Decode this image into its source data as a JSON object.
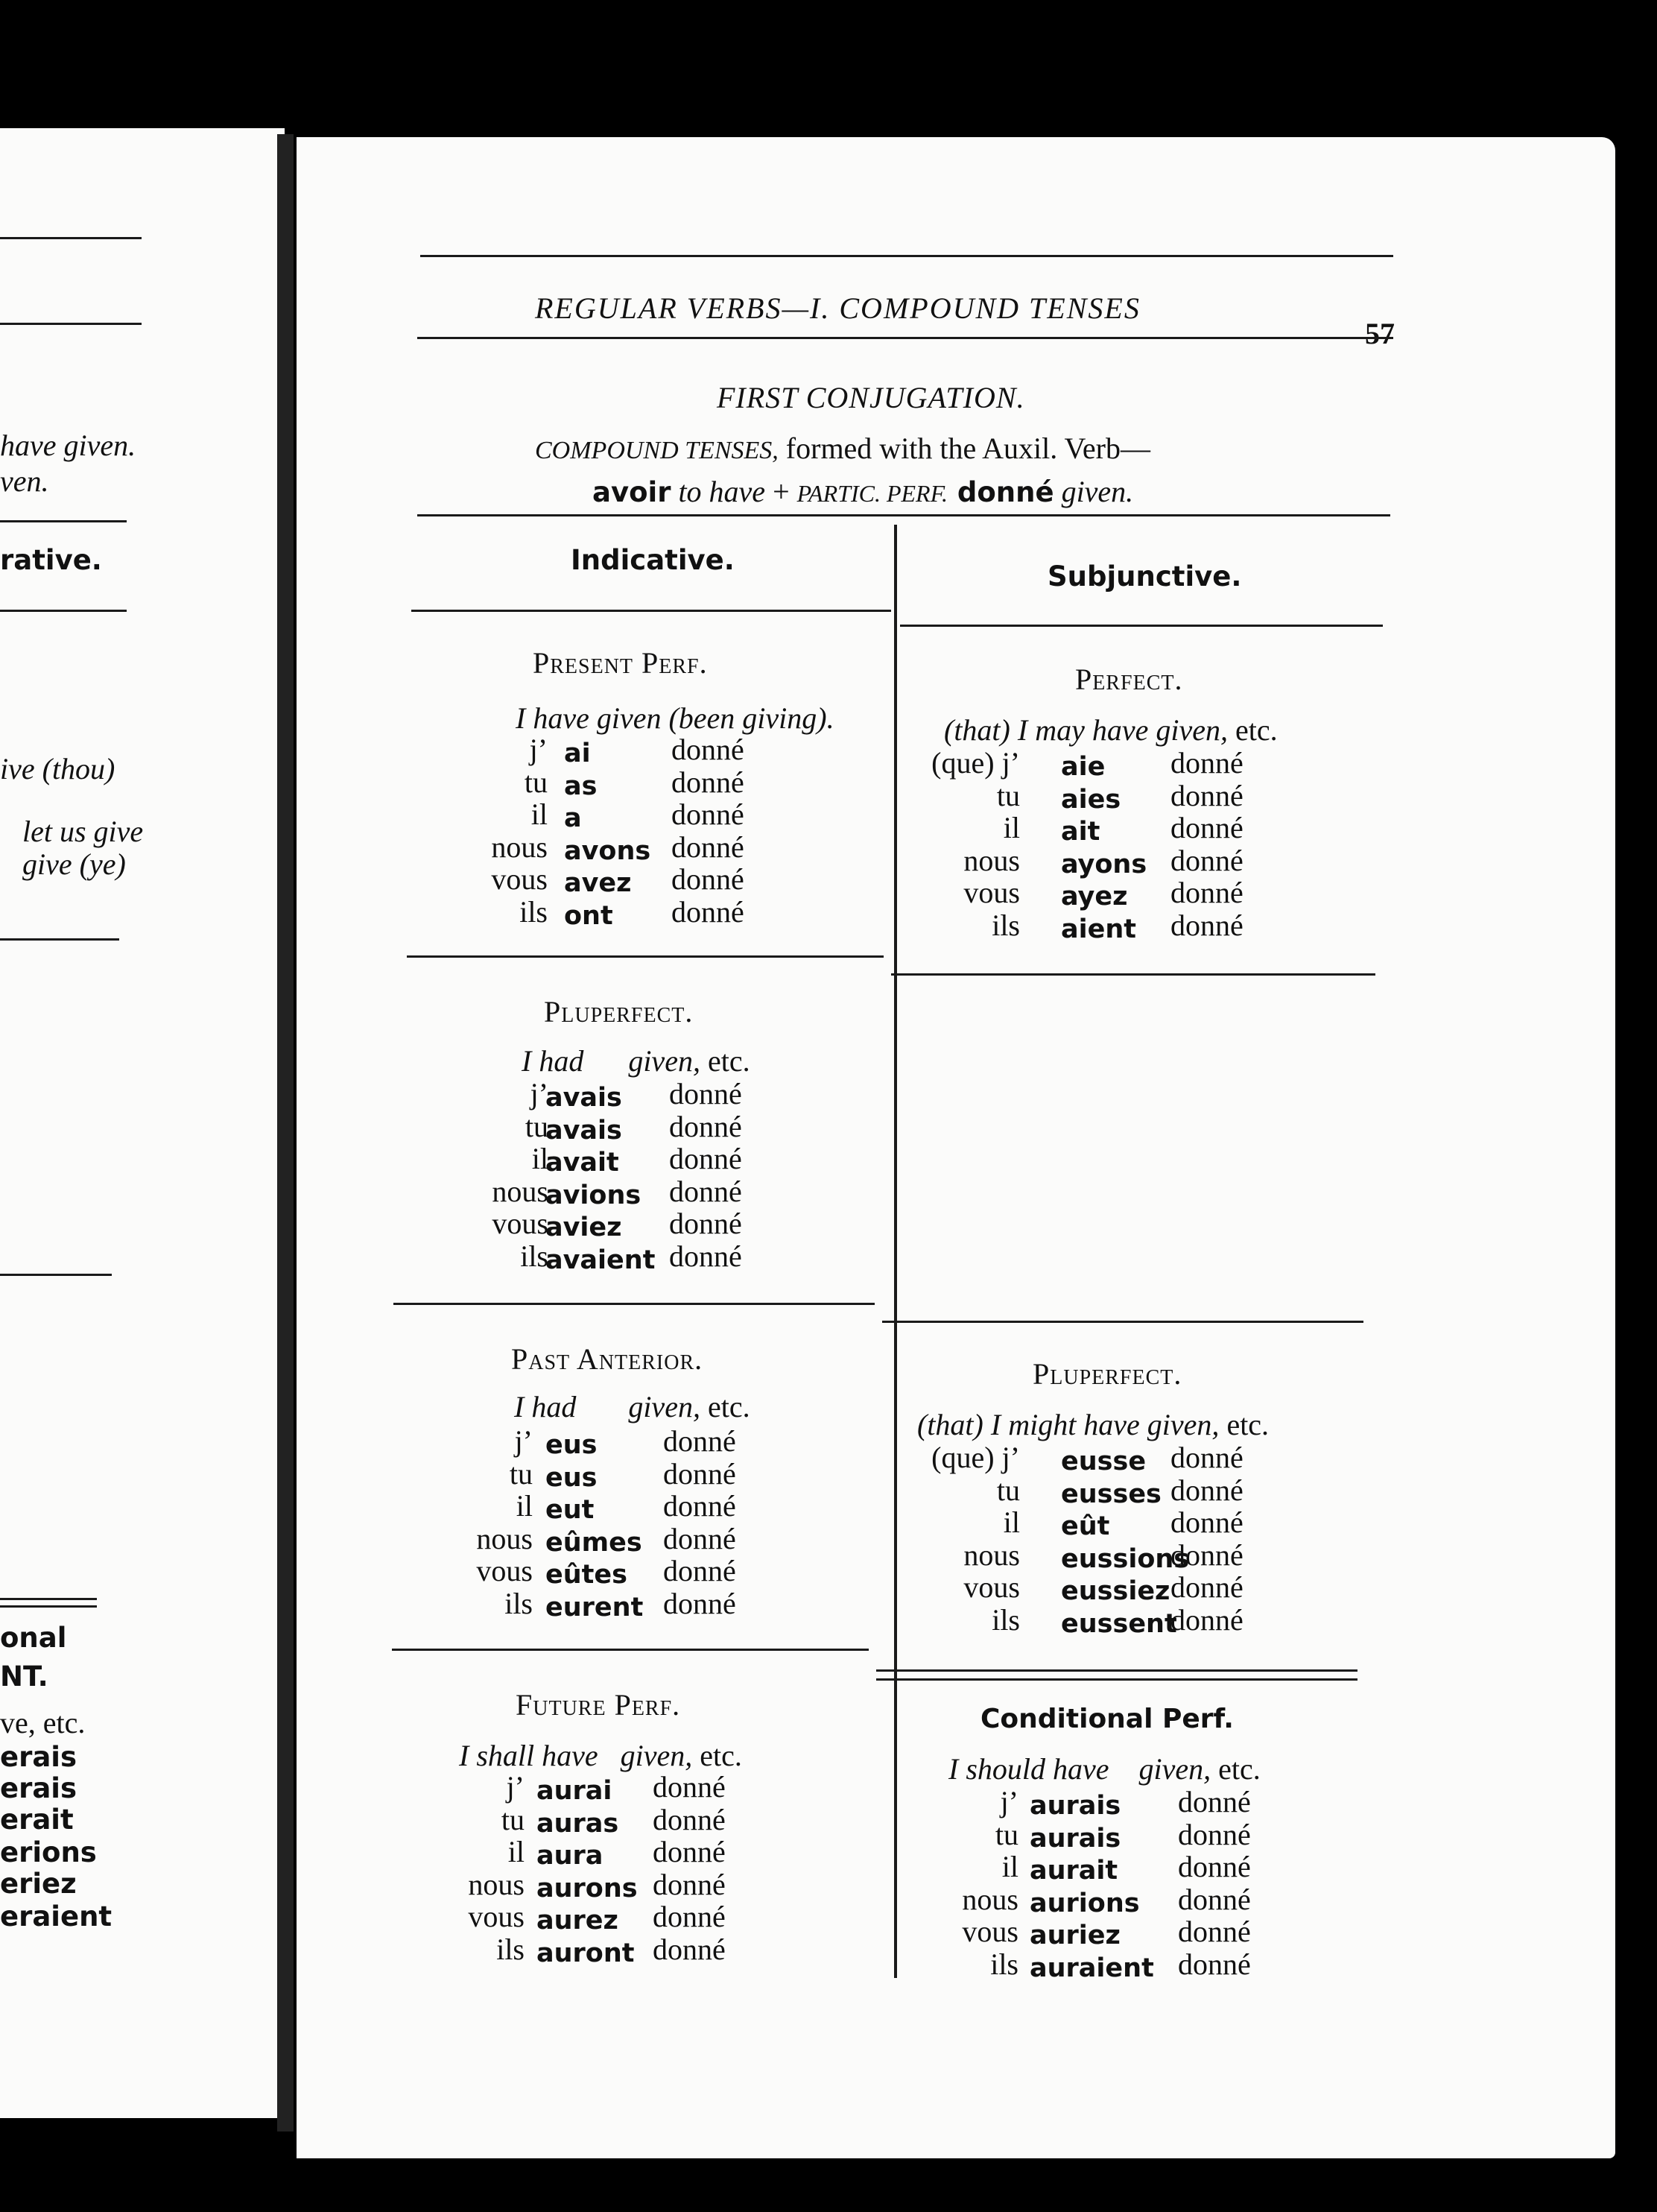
{
  "left_page": {
    "fragments": [
      {
        "text": "have given.",
        "style": "ital"
      },
      {
        "text": "ven.",
        "style": "ital"
      },
      {
        "text": "rative.",
        "style": "bsans"
      },
      {
        "text": "ive (thou)",
        "style": "ital"
      },
      {
        "text": "let us give",
        "style": "ital"
      },
      {
        "text": "give (ye)",
        "style": "ital"
      },
      {
        "text": "onal",
        "style": "bsans"
      },
      {
        "text": "NT.",
        "style": "bsans"
      },
      {
        "text": "ve, etc.",
        "style": "txt"
      },
      {
        "text": "erais",
        "style": "bsans"
      },
      {
        "text": "erais",
        "style": "bsans"
      },
      {
        "text": "erait",
        "style": "bsans"
      },
      {
        "text": "erions",
        "style": "bsans"
      },
      {
        "text": "eriez",
        "style": "bsans"
      },
      {
        "text": "eraient",
        "style": "bsans"
      }
    ]
  },
  "header": {
    "running_title": "REGULAR VERBS—I. COMPOUND TENSES",
    "page_number": "57"
  },
  "title": "FIRST CONJUGATION.",
  "subtitle": {
    "line1_italic": "COMPOUND TENSES,",
    "line1_rest": " formed with the Auxil. Verb—",
    "line2_bold1": "avoir",
    "line2_italic1": " to have",
    "line2_plus": " + ",
    "line2_italic2": "PARTIC. PERF.",
    "line2_bold2": " donné",
    "line2_italic3": " given."
  },
  "columns": {
    "indicative": "Indicative.",
    "subjunctive": "Subjunctive."
  },
  "indicative": [
    {
      "heading": "Present Perf.",
      "english": "I have given (been giving).",
      "suffix": "",
      "rows": [
        [
          "j’",
          "ai",
          "donné"
        ],
        [
          "tu",
          "as",
          "donné"
        ],
        [
          "il",
          "a",
          "donné"
        ],
        [
          "nous",
          "avons",
          "donné"
        ],
        [
          "vous",
          "avez",
          "donné"
        ],
        [
          "ils",
          "ont",
          "donné"
        ]
      ]
    },
    {
      "heading": "Pluperfect.",
      "english": "I had      given,",
      "suffix": " etc.",
      "rows": [
        [
          "j’",
          "avais",
          "donné"
        ],
        [
          "tu",
          "avais",
          "donné"
        ],
        [
          "il",
          "avait",
          "donné"
        ],
        [
          "nous",
          "avions",
          "donné"
        ],
        [
          "vous",
          "aviez",
          "donné"
        ],
        [
          "ils",
          "avaient",
          "donné"
        ]
      ]
    },
    {
      "heading": "Past Anterior.",
      "english": "I had       given,",
      "suffix": " etc.",
      "rows": [
        [
          "j’",
          "eus",
          "donné"
        ],
        [
          "tu",
          "eus",
          "donné"
        ],
        [
          "il",
          "eut",
          "donné"
        ],
        [
          "nous",
          "eûmes",
          "donné"
        ],
        [
          "vous",
          "eûtes",
          "donné"
        ],
        [
          "ils",
          "eurent",
          "donné"
        ]
      ]
    },
    {
      "heading": "Future Perf.",
      "english": "I shall have   given,",
      "suffix": " etc.",
      "rows": [
        [
          "j’",
          "aurai",
          "donné"
        ],
        [
          "tu",
          "auras",
          "donné"
        ],
        [
          "il",
          "aura",
          "donné"
        ],
        [
          "nous",
          "aurons",
          "donné"
        ],
        [
          "vous",
          "aurez",
          "donné"
        ],
        [
          "ils",
          "auront",
          "donné"
        ]
      ]
    }
  ],
  "subjunctive": [
    {
      "heading": "Perfect.",
      "english": "(that) I may have given,",
      "suffix": " etc.",
      "rows": [
        [
          "(que) j’",
          "aie",
          "donné"
        ],
        [
          "tu",
          "aies",
          "donné"
        ],
        [
          "il",
          "ait",
          "donné"
        ],
        [
          "nous",
          "ayons",
          "donné"
        ],
        [
          "vous",
          "ayez",
          "donné"
        ],
        [
          "ils",
          "aient",
          "donné"
        ]
      ]
    },
    {
      "heading": "Pluperfect.",
      "english": "(that) I might have given,",
      "suffix": " etc.",
      "rows": [
        [
          "(que) j’",
          "eusse",
          "donné"
        ],
        [
          "tu",
          "eusses",
          "donné"
        ],
        [
          "il",
          "eût",
          "donné"
        ],
        [
          "nous",
          "eussions",
          "donné"
        ],
        [
          "vous",
          "eussiez",
          "donné"
        ],
        [
          "ils",
          "eussent",
          "donné"
        ]
      ]
    },
    {
      "heading": "Conditional Perf.",
      "english": "I should have    given,",
      "suffix": " etc.",
      "rows": [
        [
          "j’",
          "aurais",
          "donné"
        ],
        [
          "tu",
          "aurais",
          "donné"
        ],
        [
          "il",
          "aurait",
          "donné"
        ],
        [
          "nous",
          "aurions",
          "donné"
        ],
        [
          "vous",
          "auriez",
          "donné"
        ],
        [
          "ils",
          "auraient",
          "donné"
        ]
      ]
    }
  ]
}
